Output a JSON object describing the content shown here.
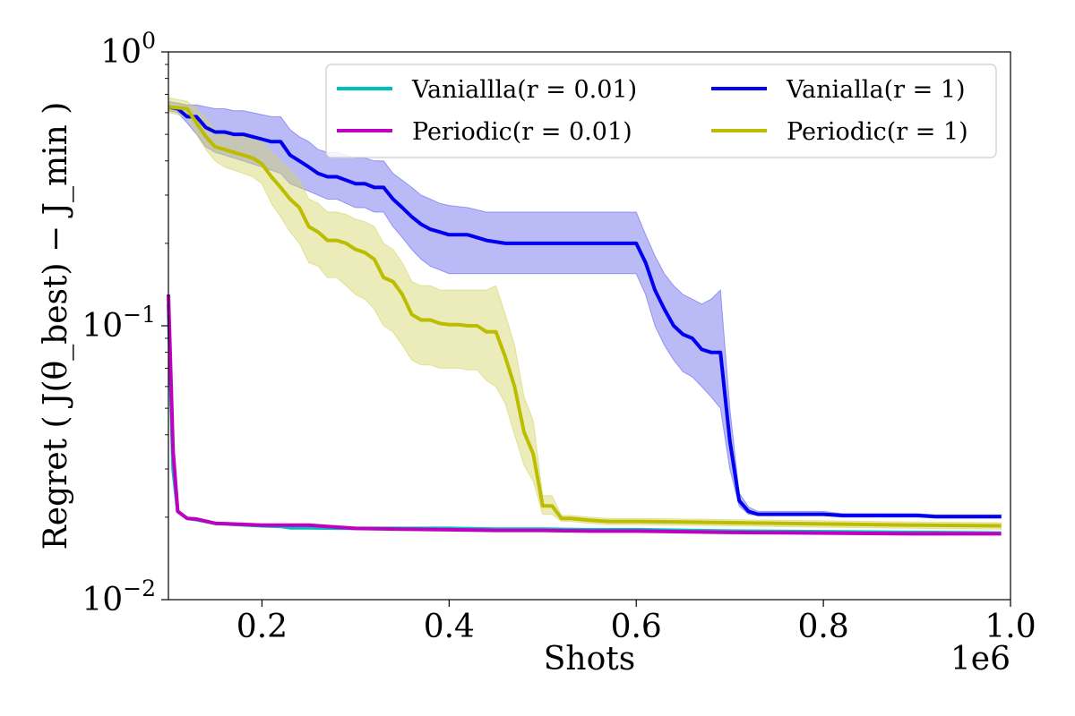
{
  "chart_data": {
    "type": "line",
    "xlabel": "Shots",
    "x_offset_label": "1e6",
    "ylabel": "Regret ( J(θ_best) − J_min )",
    "yscale": "log",
    "xlim": [
      0.1,
      1.0
    ],
    "ylim": [
      0.01,
      1.0
    ],
    "xticks": [
      {
        "value": 0.2,
        "label": "0.2"
      },
      {
        "value": 0.4,
        "label": "0.4"
      },
      {
        "value": 0.6,
        "label": "0.6"
      },
      {
        "value": 0.8,
        "label": "0.8"
      },
      {
        "value": 1.0,
        "label": "1.0"
      }
    ],
    "yticks": [
      {
        "value": 1.0,
        "base": "10",
        "exp": "0"
      },
      {
        "value": 0.1,
        "base": "10",
        "exp": "−1"
      },
      {
        "value": 0.01,
        "base": "10",
        "exp": "−2"
      }
    ],
    "legend": {
      "location": "top-right",
      "columns": 2,
      "order": [
        "vanilla_r001",
        "vanilla_r1",
        "periodic_r001",
        "periodic_r1"
      ]
    },
    "series": [
      {
        "id": "vanilla_r1",
        "name": "Vanialla(r = 1)",
        "color": "#0000ee",
        "band_color": "#6666ee",
        "x": [
          0.1,
          0.11,
          0.12,
          0.13,
          0.14,
          0.15,
          0.16,
          0.17,
          0.18,
          0.19,
          0.2,
          0.21,
          0.22,
          0.23,
          0.24,
          0.25,
          0.26,
          0.27,
          0.28,
          0.29,
          0.3,
          0.31,
          0.32,
          0.33,
          0.34,
          0.35,
          0.36,
          0.37,
          0.38,
          0.39,
          0.4,
          0.42,
          0.44,
          0.46,
          0.5,
          0.55,
          0.6,
          0.61,
          0.62,
          0.63,
          0.64,
          0.65,
          0.66,
          0.67,
          0.68,
          0.69,
          0.7,
          0.71,
          0.72,
          0.73,
          0.8,
          0.82,
          0.85,
          0.9,
          0.92,
          0.99
        ],
        "y": [
          0.63,
          0.62,
          0.58,
          0.58,
          0.53,
          0.51,
          0.51,
          0.5,
          0.5,
          0.49,
          0.48,
          0.47,
          0.47,
          0.42,
          0.4,
          0.38,
          0.36,
          0.35,
          0.35,
          0.34,
          0.33,
          0.33,
          0.32,
          0.32,
          0.29,
          0.27,
          0.25,
          0.235,
          0.225,
          0.22,
          0.215,
          0.215,
          0.205,
          0.2,
          0.2,
          0.2,
          0.2,
          0.17,
          0.135,
          0.115,
          0.1,
          0.093,
          0.09,
          0.082,
          0.08,
          0.08,
          0.038,
          0.023,
          0.021,
          0.0205,
          0.0205,
          0.0203,
          0.0203,
          0.0203,
          0.0201,
          0.0201
        ],
        "y_lower": [
          0.61,
          0.6,
          0.55,
          0.5,
          0.45,
          0.43,
          0.42,
          0.41,
          0.4,
          0.39,
          0.38,
          0.37,
          0.36,
          0.33,
          0.32,
          0.31,
          0.3,
          0.29,
          0.29,
          0.28,
          0.27,
          0.27,
          0.26,
          0.26,
          0.23,
          0.21,
          0.19,
          0.175,
          0.165,
          0.16,
          0.155,
          0.155,
          0.155,
          0.155,
          0.155,
          0.155,
          0.155,
          0.13,
          0.1,
          0.085,
          0.075,
          0.068,
          0.065,
          0.06,
          0.055,
          0.05,
          0.03,
          0.022,
          0.0205,
          0.0203,
          0.0203,
          0.02,
          0.02,
          0.02,
          0.0199,
          0.0199
        ],
        "y_upper": [
          0.66,
          0.65,
          0.64,
          0.64,
          0.63,
          0.62,
          0.62,
          0.61,
          0.61,
          0.6,
          0.59,
          0.58,
          0.58,
          0.52,
          0.49,
          0.47,
          0.44,
          0.43,
          0.43,
          0.42,
          0.41,
          0.41,
          0.4,
          0.4,
          0.36,
          0.34,
          0.32,
          0.3,
          0.29,
          0.28,
          0.275,
          0.27,
          0.26,
          0.26,
          0.26,
          0.26,
          0.26,
          0.215,
          0.18,
          0.155,
          0.14,
          0.13,
          0.125,
          0.12,
          0.125,
          0.135,
          0.05,
          0.0245,
          0.0218,
          0.021,
          0.021,
          0.0206,
          0.0206,
          0.0206,
          0.0204,
          0.0204
        ]
      },
      {
        "id": "periodic_r1",
        "name": "Periodic(r = 1)",
        "color": "#bcbc00",
        "band_color": "#d4d466",
        "x": [
          0.1,
          0.12,
          0.13,
          0.14,
          0.15,
          0.16,
          0.17,
          0.18,
          0.19,
          0.2,
          0.21,
          0.22,
          0.23,
          0.24,
          0.25,
          0.26,
          0.27,
          0.28,
          0.29,
          0.3,
          0.31,
          0.32,
          0.33,
          0.34,
          0.35,
          0.36,
          0.37,
          0.38,
          0.39,
          0.4,
          0.41,
          0.42,
          0.43,
          0.44,
          0.45,
          0.46,
          0.47,
          0.48,
          0.49,
          0.5,
          0.51,
          0.52,
          0.53,
          0.55,
          0.57,
          0.6,
          0.7,
          0.8,
          0.9,
          0.99
        ],
        "y": [
          0.63,
          0.62,
          0.55,
          0.49,
          0.45,
          0.44,
          0.43,
          0.42,
          0.41,
          0.39,
          0.35,
          0.32,
          0.29,
          0.27,
          0.23,
          0.22,
          0.205,
          0.205,
          0.2,
          0.19,
          0.185,
          0.175,
          0.15,
          0.145,
          0.13,
          0.11,
          0.105,
          0.105,
          0.102,
          0.101,
          0.101,
          0.1,
          0.1,
          0.095,
          0.095,
          0.077,
          0.06,
          0.041,
          0.034,
          0.022,
          0.022,
          0.0198,
          0.0198,
          0.0195,
          0.0193,
          0.0193,
          0.0191,
          0.0189,
          0.0187,
          0.0186
        ],
        "y_lower": [
          0.6,
          0.58,
          0.5,
          0.44,
          0.4,
          0.38,
          0.37,
          0.36,
          0.35,
          0.33,
          0.28,
          0.25,
          0.22,
          0.2,
          0.17,
          0.165,
          0.15,
          0.15,
          0.14,
          0.13,
          0.125,
          0.115,
          0.1,
          0.095,
          0.085,
          0.075,
          0.072,
          0.072,
          0.07,
          0.07,
          0.07,
          0.069,
          0.069,
          0.063,
          0.06,
          0.052,
          0.04,
          0.031,
          0.027,
          0.0205,
          0.0205,
          0.0193,
          0.0193,
          0.019,
          0.0188,
          0.0188,
          0.0186,
          0.0184,
          0.0182,
          0.0181
        ],
        "y_upper": [
          0.68,
          0.66,
          0.62,
          0.57,
          0.52,
          0.51,
          0.5,
          0.49,
          0.48,
          0.47,
          0.43,
          0.4,
          0.37,
          0.34,
          0.29,
          0.28,
          0.26,
          0.26,
          0.255,
          0.245,
          0.24,
          0.23,
          0.2,
          0.19,
          0.17,
          0.145,
          0.14,
          0.14,
          0.135,
          0.135,
          0.135,
          0.135,
          0.135,
          0.135,
          0.14,
          0.11,
          0.085,
          0.055,
          0.045,
          0.024,
          0.024,
          0.0203,
          0.0203,
          0.02,
          0.0198,
          0.0198,
          0.0196,
          0.0194,
          0.0192,
          0.0191
        ]
      },
      {
        "id": "vanilla_r001",
        "name": "Vaniallla(r = 0.01)",
        "color": "#00bfbf",
        "x": [
          0.1,
          0.105,
          0.11,
          0.12,
          0.13,
          0.15,
          0.2,
          0.22,
          0.23,
          0.25,
          0.3,
          0.4,
          0.45,
          0.5,
          0.55,
          0.6,
          0.7,
          0.8,
          0.9,
          0.99
        ],
        "y": [
          0.12,
          0.03,
          0.021,
          0.0198,
          0.0196,
          0.019,
          0.0186,
          0.0185,
          0.0183,
          0.0183,
          0.0182,
          0.0182,
          0.0181,
          0.0181,
          0.018,
          0.018,
          0.0178,
          0.0177,
          0.0176,
          0.0175
        ]
      },
      {
        "id": "periodic_r001",
        "name": "Periodic(r = 0.01)",
        "color": "#bf00bf",
        "x": [
          0.1,
          0.105,
          0.11,
          0.12,
          0.13,
          0.15,
          0.2,
          0.25,
          0.3,
          0.35,
          0.4,
          0.45,
          0.5,
          0.55,
          0.6,
          0.7,
          0.8,
          0.9,
          0.99
        ],
        "y": [
          0.13,
          0.035,
          0.021,
          0.0198,
          0.0197,
          0.019,
          0.0187,
          0.0187,
          0.0182,
          0.0181,
          0.018,
          0.0179,
          0.0179,
          0.0178,
          0.0178,
          0.0176,
          0.0175,
          0.0174,
          0.0174
        ]
      }
    ]
  }
}
